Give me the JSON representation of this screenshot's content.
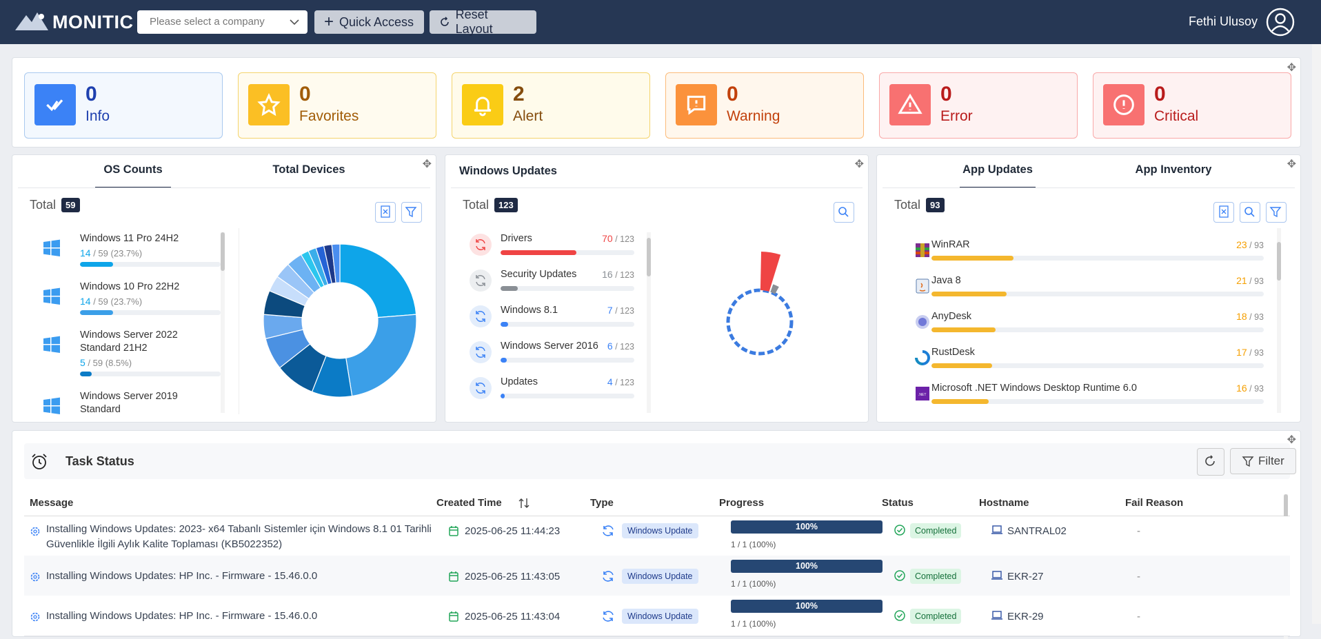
{
  "header": {
    "brand": "MONITIC",
    "company_select": "Please select a company",
    "buttons": [
      "Quick Access",
      "Reset Layout"
    ],
    "user": "Fethi Ulusoy"
  },
  "summary_cards": [
    {
      "count": 0,
      "label": "Info"
    },
    {
      "count": 0,
      "label": "Favorites"
    },
    {
      "count": 2,
      "label": "Alert"
    },
    {
      "count": 0,
      "label": "Warning"
    },
    {
      "count": 0,
      "label": "Error"
    },
    {
      "count": 0,
      "label": "Critical"
    }
  ],
  "os_panel": {
    "tabs": [
      "OS Counts",
      "Total Devices"
    ],
    "total_label": "Total",
    "total": 59,
    "items": [
      {
        "name": "Windows 11 Pro 24H2",
        "count": 14,
        "of": "/ 59",
        "share": "(23.7%)"
      },
      {
        "name": "Windows 10 Pro 22H2",
        "count": 14,
        "of": "/ 59",
        "share": "(23.7%)"
      },
      {
        "name": "Windows Server 2022 Standard 21H2",
        "count": 5,
        "of": "/ 59",
        "share": "(8.5%)"
      },
      {
        "name": "Windows Server 2019 Standard"
      }
    ],
    "donut": {
      "values": [
        14,
        14,
        5,
        5,
        4,
        3,
        3,
        2,
        2,
        2,
        1,
        1,
        1,
        1,
        1
      ],
      "colors": [
        "#0ea5e9",
        "#3b9fe8",
        "#0b7bc6",
        "#0b5a98",
        "#4b91e2",
        "#6aa9ee",
        "#0c4a7e",
        "#c7defb",
        "#9ac5f7",
        "#6cb2f3",
        "#2cc6ee",
        "#3aaeea",
        "#2563d6",
        "#1e3a8a",
        "#4a8ef0"
      ]
    }
  },
  "updates_panel": {
    "title": "Windows Updates",
    "total_label": "Total",
    "total": 123,
    "items": [
      {
        "name": "Drivers",
        "count": 70,
        "of": "/ 123"
      },
      {
        "name": "Security Updates",
        "count": 16,
        "of": "/ 123"
      },
      {
        "name": "Windows 8.1",
        "count": 7,
        "of": "/ 123"
      },
      {
        "name": "Windows Server 2016",
        "count": 6,
        "of": "/ 123"
      },
      {
        "name": "Updates",
        "count": 4,
        "of": "/ 123"
      }
    ]
  },
  "apps_panel": {
    "tabs": [
      "App Updates",
      "App Inventory"
    ],
    "total_label": "Total",
    "total": 93,
    "items": [
      {
        "name": "WinRAR",
        "count": 23,
        "of": "/ 93"
      },
      {
        "name": "Java 8",
        "count": 21,
        "of": "/ 93"
      },
      {
        "name": "AnyDesk",
        "count": 18,
        "of": "/ 93"
      },
      {
        "name": "RustDesk",
        "count": 17,
        "of": "/ 93"
      },
      {
        "name": "Microsoft .NET Windows Desktop Runtime 6.0",
        "count": 16,
        "of": "/ 93"
      }
    ]
  },
  "task_status": {
    "title": "Task Status",
    "filter_button": "Filter",
    "columns": [
      "Message",
      "Created Time",
      "Type",
      "Progress",
      "Status",
      "Hostname",
      "Fail Reason"
    ],
    "rows": [
      {
        "message": "Installing Windows Updates: 2023- x64 Tabanlı Sistemler için Windows 8.1 01 Tarihli Güvenlikle İlgili Aylık Kalite Toplaması (KB5022352)",
        "time": "2025-06-25 11:44:23",
        "type": "Windows Update",
        "progress": "100%",
        "progress_detail": "1 / 1 (100%)",
        "status": "Completed",
        "hostname": "SANTRAL02",
        "fail_reason": "-"
      },
      {
        "message": "Installing Windows Updates: HP Inc. - Firmware - 15.46.0.0",
        "time": "2025-06-25 11:43:05",
        "type": "Windows Update",
        "progress": "100%",
        "progress_detail": "1 / 1 (100%)",
        "status": "Completed",
        "hostname": "EKR-27",
        "fail_reason": "-"
      },
      {
        "message": "Installing Windows Updates: HP Inc. - Firmware - 15.46.0.0",
        "time": "2025-06-25 11:43:04",
        "type": "Windows Update",
        "progress": "100%",
        "progress_detail": "1 / 1 (100%)",
        "status": "Completed",
        "hostname": "EKR-29",
        "fail_reason": "-"
      }
    ]
  }
}
